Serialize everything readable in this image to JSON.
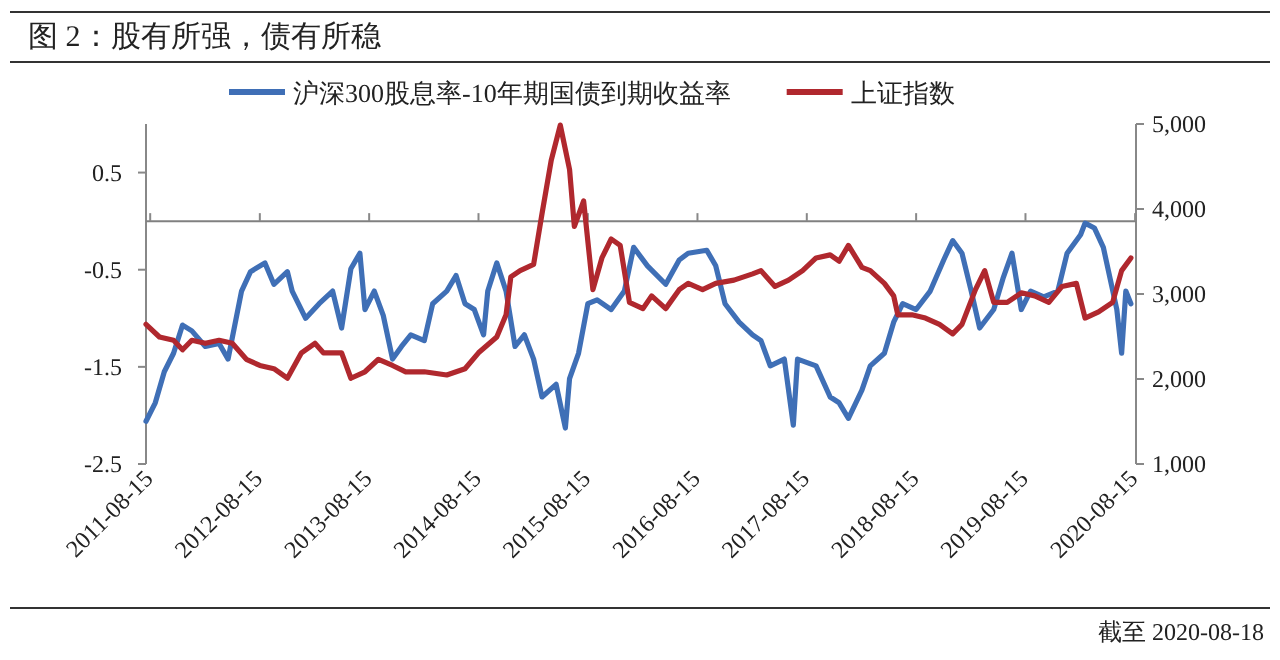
{
  "chart_data": {
    "type": "line",
    "title": "图 2：股有所强，债有所稳",
    "annotations": [
      "截至 2020-08-18"
    ],
    "legend": "top",
    "grid": false,
    "marker": "none",
    "line_style": "solid",
    "xlim": [
      "2011-08-01",
      "2020-08-18"
    ],
    "xticks": [
      "2011-08-15",
      "2012-08-15",
      "2013-08-15",
      "2014-08-15",
      "2015-08-15",
      "2016-08-15",
      "2017-08-15",
      "2018-08-15",
      "2019-08-15",
      "2020-08-15"
    ],
    "ylim": [
      -2.5,
      1.0
    ],
    "yticks": [
      0.5,
      -0.5,
      -1.5,
      -2.5
    ],
    "y2lim": [
      1000,
      5000
    ],
    "y2ticks": [
      {
        "value": 1000,
        "label": "1,000"
      },
      {
        "value": 2000,
        "label": "2,000"
      },
      {
        "value": 3000,
        "label": "3,000"
      },
      {
        "value": 4000,
        "label": "4,000"
      },
      {
        "value": 5000,
        "label": "5,000"
      }
    ],
    "ref_lines": [
      {
        "axis": "y",
        "value": 0,
        "color": "#808080"
      }
    ],
    "series": [
      {
        "name": "沪深300股息率-10年期国债到期收益率",
        "color": "#3f6fb6",
        "x": [
          "2011-08-01",
          "2011-09-01",
          "2011-10-01",
          "2011-11-01",
          "2011-12-01",
          "2012-01-01",
          "2012-02-15",
          "2012-04-01",
          "2012-05-01",
          "2012-06-15",
          "2012-07-15",
          "2012-09-01",
          "2012-10-01",
          "2012-11-15",
          "2012-12-01",
          "2013-01-15",
          "2013-03-01",
          "2013-04-15",
          "2013-05-15",
          "2013-06-15",
          "2013-07-15",
          "2013-08-01",
          "2013-09-01",
          "2013-10-01",
          "2013-11-01",
          "2013-12-01",
          "2014-01-01",
          "2014-02-15",
          "2014-03-15",
          "2014-05-01",
          "2014-06-01",
          "2014-07-01",
          "2014-08-01",
          "2014-09-01",
          "2014-09-15",
          "2014-10-15",
          "2014-11-15",
          "2014-12-15",
          "2015-01-15",
          "2015-02-15",
          "2015-03-15",
          "2015-05-01",
          "2015-06-01",
          "2015-06-15",
          "2015-07-15",
          "2015-08-15",
          "2015-09-15",
          "2015-11-01",
          "2015-12-15",
          "2016-01-15",
          "2016-03-01",
          "2016-05-01",
          "2016-06-15",
          "2016-07-15",
          "2016-09-15",
          "2016-10-15",
          "2016-11-15",
          "2017-01-01",
          "2017-02-15",
          "2017-03-15",
          "2017-04-15",
          "2017-06-01",
          "2017-07-01",
          "2017-07-15",
          "2017-09-15",
          "2017-11-01",
          "2017-12-01",
          "2018-01-01",
          "2018-02-15",
          "2018-03-15",
          "2018-05-01",
          "2018-06-01",
          "2018-07-01",
          "2018-08-15",
          "2018-10-01",
          "2018-11-15",
          "2018-12-15",
          "2019-01-15",
          "2019-02-15",
          "2019-03-15",
          "2019-05-01",
          "2019-06-01",
          "2019-07-01",
          "2019-08-01",
          "2019-09-01",
          "2019-10-15",
          "2019-12-01",
          "2020-01-01",
          "2020-02-15",
          "2020-03-01",
          "2020-04-01",
          "2020-05-01",
          "2020-06-15",
          "2020-07-01",
          "2020-07-15",
          "2020-08-01"
        ],
        "values": [
          -2.06,
          -1.87,
          -1.55,
          -1.36,
          -1.07,
          -1.13,
          -1.29,
          -1.26,
          -1.42,
          -0.72,
          -0.52,
          -0.43,
          -0.65,
          -0.52,
          -0.72,
          -1.0,
          -0.85,
          -0.72,
          -1.1,
          -0.49,
          -0.33,
          -0.91,
          -0.72,
          -0.97,
          -1.42,
          -1.29,
          -1.17,
          -1.23,
          -0.85,
          -0.72,
          -0.56,
          -0.85,
          -0.91,
          -1.17,
          -0.72,
          -0.43,
          -0.72,
          -1.29,
          -1.17,
          -1.42,
          -1.81,
          -1.68,
          -2.13,
          -1.62,
          -1.36,
          -0.85,
          -0.81,
          -0.91,
          -0.72,
          -0.27,
          -0.46,
          -0.65,
          -0.4,
          -0.33,
          -0.3,
          -0.46,
          -0.85,
          -1.04,
          -1.17,
          -1.23,
          -1.49,
          -1.42,
          -2.1,
          -1.42,
          -1.49,
          -1.81,
          -1.87,
          -2.03,
          -1.74,
          -1.49,
          -1.36,
          -1.04,
          -0.85,
          -0.91,
          -0.72,
          -0.4,
          -0.2,
          -0.33,
          -0.72,
          -1.1,
          -0.91,
          -0.59,
          -0.33,
          -0.91,
          -0.72,
          -0.78,
          -0.72,
          -0.33,
          -0.14,
          -0.02,
          -0.07,
          -0.27,
          -0.91,
          -1.36,
          -0.72,
          -0.85
        ]
      },
      {
        "name": "上证指数",
        "color": "#b0282e",
        "axis": "y2",
        "x": [
          "2011-08-01",
          "2011-09-15",
          "2011-11-01",
          "2011-12-01",
          "2012-01-01",
          "2012-02-15",
          "2012-04-01",
          "2012-05-15",
          "2012-07-01",
          "2012-08-15",
          "2012-10-01",
          "2012-11-15",
          "2013-01-01",
          "2013-02-15",
          "2013-03-15",
          "2013-05-15",
          "2013-06-15",
          "2013-08-01",
          "2013-09-15",
          "2013-11-01",
          "2013-12-15",
          "2014-02-15",
          "2014-05-01",
          "2014-07-01",
          "2014-08-15",
          "2014-10-15",
          "2014-11-15",
          "2014-12-01",
          "2015-01-01",
          "2015-02-15",
          "2015-03-15",
          "2015-04-15",
          "2015-05-15",
          "2015-06-15",
          "2015-07-01",
          "2015-08-01",
          "2015-09-01",
          "2015-10-01",
          "2015-11-01",
          "2015-12-01",
          "2016-01-01",
          "2016-02-15",
          "2016-03-15",
          "2016-05-01",
          "2016-06-15",
          "2016-07-15",
          "2016-09-01",
          "2016-10-15",
          "2016-12-15",
          "2017-02-15",
          "2017-03-15",
          "2017-05-01",
          "2017-06-15",
          "2017-08-01",
          "2017-09-15",
          "2017-11-01",
          "2017-12-01",
          "2018-01-01",
          "2018-02-15",
          "2018-03-15",
          "2018-05-01",
          "2018-06-01",
          "2018-06-15",
          "2018-08-01",
          "2018-09-15",
          "2018-11-01",
          "2018-12-15",
          "2019-01-15",
          "2019-03-01",
          "2019-04-01",
          "2019-05-01",
          "2019-06-15",
          "2019-08-01",
          "2019-09-15",
          "2019-11-01",
          "2019-12-15",
          "2020-02-01",
          "2020-03-01",
          "2020-04-15",
          "2020-06-01",
          "2020-07-01",
          "2020-08-01"
        ],
        "values": [
          2643,
          2494,
          2456,
          2344,
          2456,
          2420,
          2456,
          2420,
          2232,
          2159,
          2121,
          2009,
          2308,
          2420,
          2308,
          2308,
          2009,
          2085,
          2232,
          2159,
          2085,
          2085,
          2047,
          2121,
          2308,
          2494,
          2755,
          3201,
          3275,
          3348,
          3944,
          4576,
          4987,
          4464,
          3795,
          4094,
          3051,
          3424,
          3647,
          3572,
          2902,
          2828,
          2978,
          2828,
          3051,
          3125,
          3051,
          3125,
          3163,
          3237,
          3275,
          3089,
          3163,
          3275,
          3424,
          3460,
          3386,
          3572,
          3313,
          3275,
          3125,
          2978,
          2755,
          2755,
          2717,
          2643,
          2531,
          2643,
          3051,
          3275,
          2902,
          2902,
          3014,
          2978,
          2902,
          3089,
          3125,
          2717,
          2790,
          2902,
          3275,
          3424
        ]
      }
    ]
  }
}
